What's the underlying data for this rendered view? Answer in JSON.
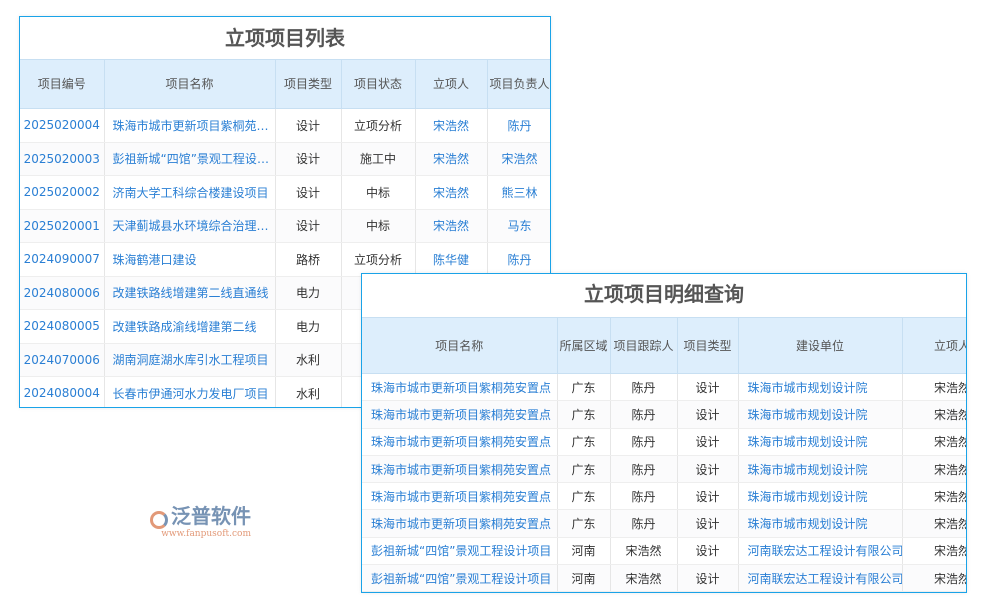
{
  "list": {
    "title": "立项项目列表",
    "columns": [
      "项目编号",
      "项目名称",
      "项目类型",
      "项目状态",
      "立项人",
      "项目负责人"
    ],
    "rows": [
      [
        "2025020004",
        "珠海市城市更新项目紫桐苑安置点",
        "设计",
        "立项分析",
        "宋浩然",
        "陈丹"
      ],
      [
        "2025020003",
        "彭祖新城“四馆”景观工程设计项目",
        "设计",
        "施工中",
        "宋浩然",
        "宋浩然"
      ],
      [
        "2025020002",
        "济南大学工科综合楼建设项目",
        "设计",
        "中标",
        "宋浩然",
        "熊三林"
      ],
      [
        "2025020001",
        "天津蓟城县水环境综合治理项目",
        "设计",
        "中标",
        "宋浩然",
        "马东"
      ],
      [
        "2024090007",
        "珠海鹤港口建设",
        "路桥",
        "立项分析",
        "陈华健",
        "陈丹"
      ],
      [
        "2024080006",
        "改建铁路线增建第二线直通线",
        "电力",
        "",
        "",
        ""
      ],
      [
        "2024080005",
        "改建铁路成渝线增建第二线",
        "电力",
        "",
        "",
        ""
      ],
      [
        "2024070006",
        "湖南洞庭湖水库引水工程项目",
        "水利",
        "",
        "",
        ""
      ],
      [
        "2024080004",
        "长春市伊通河水力发电厂项目",
        "水利",
        "",
        "",
        ""
      ]
    ]
  },
  "detail": {
    "title": "立项项目明细查询",
    "columns": [
      "项目名称",
      "所属区域",
      "项目跟踪人",
      "项目类型",
      "建设单位",
      "立项人"
    ],
    "rows": [
      [
        "珠海市城市更新项目紫桐苑安置点",
        "广东",
        "陈丹",
        "设计",
        "珠海市城市规划设计院",
        "宋浩然"
      ],
      [
        "珠海市城市更新项目紫桐苑安置点",
        "广东",
        "陈丹",
        "设计",
        "珠海市城市规划设计院",
        "宋浩然"
      ],
      [
        "珠海市城市更新项目紫桐苑安置点",
        "广东",
        "陈丹",
        "设计",
        "珠海市城市规划设计院",
        "宋浩然"
      ],
      [
        "珠海市城市更新项目紫桐苑安置点",
        "广东",
        "陈丹",
        "设计",
        "珠海市城市规划设计院",
        "宋浩然"
      ],
      [
        "珠海市城市更新项目紫桐苑安置点",
        "广东",
        "陈丹",
        "设计",
        "珠海市城市规划设计院",
        "宋浩然"
      ],
      [
        "珠海市城市更新项目紫桐苑安置点",
        "广东",
        "陈丹",
        "设计",
        "珠海市城市规划设计院",
        "宋浩然"
      ],
      [
        "彭祖新城“四馆”景观工程设计项目",
        "河南",
        "宋浩然",
        "设计",
        "河南联宏达工程设计有限公司",
        "宋浩然"
      ],
      [
        "彭祖新城“四馆”景观工程设计项目",
        "河南",
        "宋浩然",
        "设计",
        "河南联宏达工程设计有限公司",
        "宋浩然"
      ]
    ]
  },
  "watermark": {
    "brand": "泛普软件",
    "url": "www.fanpusoft.com"
  },
  "colors": {
    "border": "#1aa3e8",
    "header_bg": "#ddeefc",
    "link": "#2a7fd4"
  }
}
